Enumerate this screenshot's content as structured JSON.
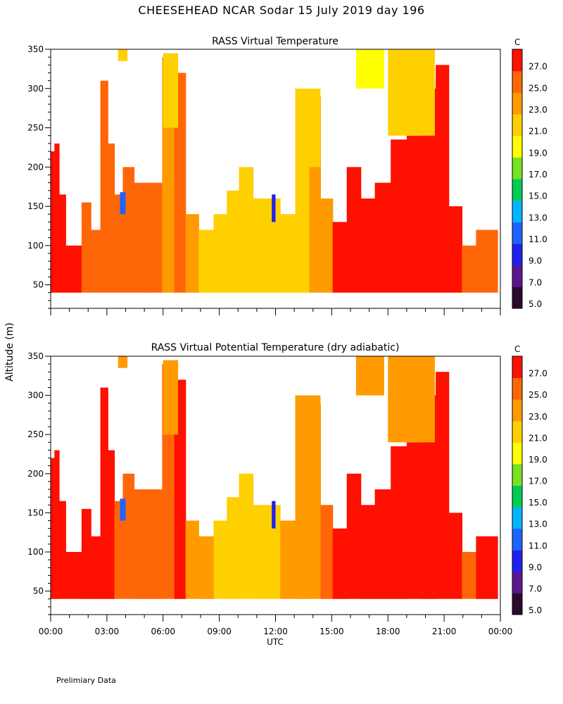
{
  "page": {
    "title": "CHEESEHEAD   NCAR Sodar   15 July 2019   day 196",
    "footer_note": "Prelimiary Data"
  },
  "chart_data": [
    {
      "type": "heatmap",
      "title": "RASS Virtual Temperature",
      "xlabel": "UTC",
      "ylabel": "Altitude (m)",
      "x_tick_labels": [
        "00:00",
        "03:00",
        "06:00",
        "09:00",
        "12:00",
        "15:00",
        "18:00",
        "21:00",
        "00:00"
      ],
      "xlim_hours": [
        0,
        24
      ],
      "ylim": [
        20,
        350
      ],
      "y_ticks": [
        50,
        100,
        150,
        200,
        250,
        300,
        350
      ],
      "colorbar": {
        "unit": "C",
        "levels": [
          5.0,
          7.0,
          9.0,
          11.0,
          13.0,
          15.0,
          17.0,
          19.0,
          21.0,
          23.0,
          25.0,
          27.0
        ],
        "labels": [
          "5.0",
          "7.0",
          "9.0",
          "11.0",
          "13.0",
          "15.0",
          "17.0",
          "19.0",
          "21.0",
          "23.0",
          "25.0",
          "27.0"
        ],
        "colors": [
          "#2a0a2a",
          "#5a168e",
          "#2020ee",
          "#1e64ff",
          "#00b4ff",
          "#00cc55",
          "#77e21f",
          "#ffff00",
          "#ffd000",
          "#ff9a00",
          "#ff6608",
          "#ff1000"
        ]
      },
      "columns": [
        {
          "hour": 0.1,
          "top": 220,
          "temp": 27.5
        },
        {
          "hour": 0.3,
          "top": 230,
          "temp": 27.5
        },
        {
          "hour": 0.6,
          "top": 165,
          "temp": 27.5
        },
        {
          "hour": 1.0,
          "top": 100,
          "temp": 27.5
        },
        {
          "hour": 1.4,
          "top": 100,
          "temp": 27.0
        },
        {
          "hour": 1.9,
          "top": 155,
          "temp": 26.5
        },
        {
          "hour": 2.4,
          "top": 120,
          "temp": 25.5
        },
        {
          "hour": 2.9,
          "top": 310,
          "temp": 26.5
        },
        {
          "hour": 3.2,
          "top": 230,
          "temp": 25.5
        },
        {
          "hour": 3.6,
          "top": 165,
          "temp": 25.5
        },
        {
          "hour": 4.1,
          "top": 200,
          "temp": 25.0
        },
        {
          "hour": 4.8,
          "top": 180,
          "temp": 25.0
        },
        {
          "hour": 5.6,
          "top": 180,
          "temp": 25.0
        },
        {
          "hour": 6.3,
          "top": 340,
          "temp": 24.0
        },
        {
          "hour": 6.9,
          "top": 320,
          "temp": 26.5
        },
        {
          "hour": 7.5,
          "top": 140,
          "temp": 23.5
        },
        {
          "hour": 8.3,
          "top": 120,
          "temp": 22.5
        },
        {
          "hour": 9.1,
          "top": 140,
          "temp": 21.5
        },
        {
          "hour": 9.7,
          "top": 170,
          "temp": 21.5
        },
        {
          "hour": 10.4,
          "top": 200,
          "temp": 21.5
        },
        {
          "hour": 11.2,
          "top": 160,
          "temp": 21.5
        },
        {
          "hour": 11.9,
          "top": 160,
          "temp": 21.5
        },
        {
          "hour": 12.6,
          "top": 140,
          "temp": 21.5
        },
        {
          "hour": 13.5,
          "top": 300,
          "temp": 22.5
        },
        {
          "hour": 14.1,
          "top": 290,
          "temp": 23.0
        },
        {
          "hour": 14.7,
          "top": 160,
          "temp": 24.5
        },
        {
          "hour": 15.4,
          "top": 130,
          "temp": 27.0
        },
        {
          "hour": 16.2,
          "top": 200,
          "temp": 27.5
        },
        {
          "hour": 16.9,
          "top": 160,
          "temp": 27.5
        },
        {
          "hour": 17.7,
          "top": 180,
          "temp": 27.5
        },
        {
          "hour": 18.6,
          "top": 235,
          "temp": 27.5
        },
        {
          "hour": 19.4,
          "top": 240,
          "temp": 27.5
        },
        {
          "hour": 20.2,
          "top": 300,
          "temp": 27.5
        },
        {
          "hour": 20.9,
          "top": 330,
          "temp": 27.5
        },
        {
          "hour": 21.6,
          "top": 150,
          "temp": 27.5
        },
        {
          "hour": 22.3,
          "top": 100,
          "temp": 25.5
        },
        {
          "hour": 23.1,
          "top": 120,
          "temp": 25.5
        },
        {
          "hour": 23.8,
          "top": 120,
          "temp": 25.5
        }
      ],
      "patches": [
        {
          "h0": 16.3,
          "h1": 17.8,
          "z0": 300,
          "z1": 350,
          "temp": 20.0
        },
        {
          "h0": 18.0,
          "h1": 20.5,
          "z0": 240,
          "z1": 350,
          "temp": 21.5
        },
        {
          "h0": 3.6,
          "h1": 4.1,
          "z0": 335,
          "z1": 350,
          "temp": 22.0
        },
        {
          "h0": 6.0,
          "h1": 6.8,
          "z0": 250,
          "z1": 345,
          "temp": 22.5
        },
        {
          "h0": 13.8,
          "h1": 14.4,
          "z0": 200,
          "z1": 300,
          "temp": 22.5
        },
        {
          "h0": 3.7,
          "h1": 4.0,
          "z0": 140,
          "z1": 168,
          "temp": 12.0
        },
        {
          "h0": 11.8,
          "h1": 12.0,
          "z0": 130,
          "z1": 165,
          "temp": 10.0
        }
      ]
    },
    {
      "type": "heatmap",
      "title": "RASS Virtual Potential Temperature (dry adiabatic)",
      "xlabel": "UTC",
      "ylabel": "Altitude (m)",
      "x_tick_labels": [
        "00:00",
        "03:00",
        "06:00",
        "09:00",
        "12:00",
        "15:00",
        "18:00",
        "21:00",
        "00:00"
      ],
      "xlim_hours": [
        0,
        24
      ],
      "ylim": [
        20,
        350
      ],
      "y_ticks": [
        50,
        100,
        150,
        200,
        250,
        300,
        350
      ],
      "colorbar": {
        "unit": "C",
        "levels": [
          5.0,
          7.0,
          9.0,
          11.0,
          13.0,
          15.0,
          17.0,
          19.0,
          21.0,
          23.0,
          25.0,
          27.0
        ],
        "labels": [
          "5.0",
          "7.0",
          "9.0",
          "11.0",
          "13.0",
          "15.0",
          "17.0",
          "19.0",
          "21.0",
          "23.0",
          "25.0",
          "27.0"
        ],
        "colors": [
          "#2a0a2a",
          "#5a168e",
          "#2020ee",
          "#1e64ff",
          "#00b4ff",
          "#00cc55",
          "#77e21f",
          "#ffff00",
          "#ffd000",
          "#ff9a00",
          "#ff6608",
          "#ff1000"
        ]
      },
      "columns": [
        {
          "hour": 0.1,
          "top": 220,
          "temp": 27.5
        },
        {
          "hour": 0.3,
          "top": 230,
          "temp": 27.5
        },
        {
          "hour": 0.6,
          "top": 165,
          "temp": 27.5
        },
        {
          "hour": 1.0,
          "top": 100,
          "temp": 27.5
        },
        {
          "hour": 1.4,
          "top": 100,
          "temp": 27.5
        },
        {
          "hour": 1.9,
          "top": 155,
          "temp": 27.5
        },
        {
          "hour": 2.4,
          "top": 120,
          "temp": 27.0
        },
        {
          "hour": 2.9,
          "top": 310,
          "temp": 27.5
        },
        {
          "hour": 3.2,
          "top": 230,
          "temp": 27.0
        },
        {
          "hour": 3.6,
          "top": 165,
          "temp": 26.5
        },
        {
          "hour": 4.1,
          "top": 200,
          "temp": 26.5
        },
        {
          "hour": 4.8,
          "top": 180,
          "temp": 26.0
        },
        {
          "hour": 5.6,
          "top": 180,
          "temp": 25.5
        },
        {
          "hour": 6.3,
          "top": 340,
          "temp": 25.5
        },
        {
          "hour": 6.9,
          "top": 320,
          "temp": 27.5
        },
        {
          "hour": 7.5,
          "top": 140,
          "temp": 24.0
        },
        {
          "hour": 8.3,
          "top": 120,
          "temp": 23.5
        },
        {
          "hour": 9.1,
          "top": 140,
          "temp": 22.5
        },
        {
          "hour": 9.7,
          "top": 170,
          "temp": 22.0
        },
        {
          "hour": 10.4,
          "top": 200,
          "temp": 22.0
        },
        {
          "hour": 11.2,
          "top": 160,
          "temp": 22.0
        },
        {
          "hour": 11.9,
          "top": 160,
          "temp": 22.0
        },
        {
          "hour": 12.6,
          "top": 140,
          "temp": 23.0
        },
        {
          "hour": 13.5,
          "top": 300,
          "temp": 23.5
        },
        {
          "hour": 14.1,
          "top": 290,
          "temp": 24.0
        },
        {
          "hour": 14.7,
          "top": 160,
          "temp": 26.5
        },
        {
          "hour": 15.4,
          "top": 130,
          "temp": 27.5
        },
        {
          "hour": 16.2,
          "top": 200,
          "temp": 27.5
        },
        {
          "hour": 16.9,
          "top": 160,
          "temp": 27.5
        },
        {
          "hour": 17.7,
          "top": 180,
          "temp": 27.5
        },
        {
          "hour": 18.6,
          "top": 235,
          "temp": 27.5
        },
        {
          "hour": 19.4,
          "top": 240,
          "temp": 27.5
        },
        {
          "hour": 20.2,
          "top": 300,
          "temp": 27.5
        },
        {
          "hour": 20.9,
          "top": 330,
          "temp": 27.5
        },
        {
          "hour": 21.6,
          "top": 150,
          "temp": 27.5
        },
        {
          "hour": 22.3,
          "top": 100,
          "temp": 26.0
        },
        {
          "hour": 23.1,
          "top": 120,
          "temp": 27.0
        },
        {
          "hour": 23.8,
          "top": 120,
          "temp": 27.0
        }
      ],
      "patches": [
        {
          "h0": 16.3,
          "h1": 17.8,
          "z0": 300,
          "z1": 350,
          "temp": 24.0
        },
        {
          "h0": 18.0,
          "h1": 20.5,
          "z0": 240,
          "z1": 350,
          "temp": 24.0
        },
        {
          "h0": 3.6,
          "h1": 4.1,
          "z0": 335,
          "z1": 350,
          "temp": 24.0
        },
        {
          "h0": 6.0,
          "h1": 6.8,
          "z0": 250,
          "z1": 345,
          "temp": 24.5
        },
        {
          "h0": 13.8,
          "h1": 14.4,
          "z0": 200,
          "z1": 300,
          "temp": 24.0
        },
        {
          "h0": 3.7,
          "h1": 4.0,
          "z0": 140,
          "z1": 168,
          "temp": 12.0
        },
        {
          "h0": 11.8,
          "h1": 12.0,
          "z0": 130,
          "z1": 165,
          "temp": 10.0
        }
      ]
    }
  ]
}
